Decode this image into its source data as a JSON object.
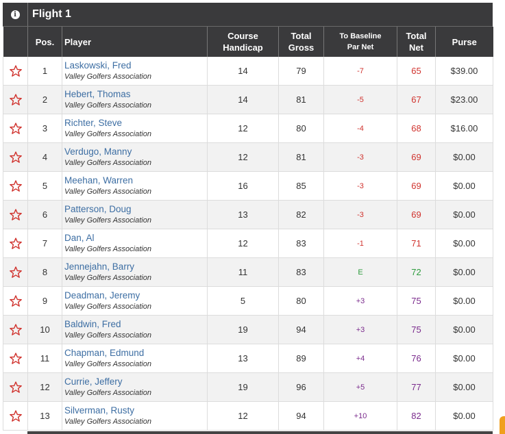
{
  "flight": {
    "title": "Flight 1",
    "info_icon": "info-icon"
  },
  "columns": {
    "pos": "Pos.",
    "player": "Player",
    "handicap_l1": "Course",
    "handicap_l2": "Handicap",
    "gross_l1": "Total",
    "gross_l2": "Gross",
    "par_l1": "To Baseline",
    "par_l2": "Par Net",
    "net_l1": "Total",
    "net_l2": "Net",
    "purse": "Purse"
  },
  "rows": [
    {
      "pos": "1",
      "name": "Laskowski, Fred",
      "assoc": "Valley Golfers Association",
      "handicap": "14",
      "gross": "79",
      "par": "-7",
      "net": "65",
      "purse": "$39.00",
      "tone": "neg"
    },
    {
      "pos": "2",
      "name": "Hebert, Thomas",
      "assoc": "Valley Golfers Association",
      "handicap": "14",
      "gross": "81",
      "par": "-5",
      "net": "67",
      "purse": "$23.00",
      "tone": "neg"
    },
    {
      "pos": "3",
      "name": "Richter, Steve",
      "assoc": "Valley Golfers Association",
      "handicap": "12",
      "gross": "80",
      "par": "-4",
      "net": "68",
      "purse": "$16.00",
      "tone": "neg"
    },
    {
      "pos": "4",
      "name": "Verdugo, Manny",
      "assoc": "Valley Golfers Association",
      "handicap": "12",
      "gross": "81",
      "par": "-3",
      "net": "69",
      "purse": "$0.00",
      "tone": "neg"
    },
    {
      "pos": "5",
      "name": "Meehan, Warren",
      "assoc": "Valley Golfers Association",
      "handicap": "16",
      "gross": "85",
      "par": "-3",
      "net": "69",
      "purse": "$0.00",
      "tone": "neg"
    },
    {
      "pos": "6",
      "name": "Patterson, Doug",
      "assoc": "Valley Golfers Association",
      "handicap": "13",
      "gross": "82",
      "par": "-3",
      "net": "69",
      "purse": "$0.00",
      "tone": "neg"
    },
    {
      "pos": "7",
      "name": "Dan, Al",
      "assoc": "Valley Golfers Association",
      "handicap": "12",
      "gross": "83",
      "par": "-1",
      "net": "71",
      "purse": "$0.00",
      "tone": "neg"
    },
    {
      "pos": "8",
      "name": "Jennejahn, Barry",
      "assoc": "Valley Golfers Association",
      "handicap": "11",
      "gross": "83",
      "par": "E",
      "net": "72",
      "purse": "$0.00",
      "tone": "even"
    },
    {
      "pos": "9",
      "name": "Deadman, Jeremy",
      "assoc": "Valley Golfers Association",
      "handicap": "5",
      "gross": "80",
      "par": "+3",
      "net": "75",
      "purse": "$0.00",
      "tone": "pos"
    },
    {
      "pos": "10",
      "name": "Baldwin, Fred",
      "assoc": "Valley Golfers Association",
      "handicap": "19",
      "gross": "94",
      "par": "+3",
      "net": "75",
      "purse": "$0.00",
      "tone": "pos"
    },
    {
      "pos": "11",
      "name": "Chapman, Edmund",
      "assoc": "Valley Golfers Association",
      "handicap": "13",
      "gross": "89",
      "par": "+4",
      "net": "76",
      "purse": "$0.00",
      "tone": "pos"
    },
    {
      "pos": "12",
      "name": "Currie, Jeffery",
      "assoc": "Valley Golfers Association",
      "handicap": "19",
      "gross": "96",
      "par": "+5",
      "net": "77",
      "purse": "$0.00",
      "tone": "pos"
    },
    {
      "pos": "13",
      "name": "Silverman, Rusty",
      "assoc": "Valley Golfers Association",
      "handicap": "12",
      "gross": "94",
      "par": "+10",
      "net": "82",
      "purse": "$0.00",
      "tone": "pos"
    }
  ],
  "colors": {
    "header_bg": "#3a3a3c",
    "player_link": "#3d6ea3",
    "under_par": "#d0322d",
    "even_par": "#2e9c3e",
    "over_par": "#7a2a8c",
    "star_outline": "#d0322d",
    "accent_tab": "#f0a01e"
  },
  "icons": {
    "favorite": "star-outline-icon"
  }
}
